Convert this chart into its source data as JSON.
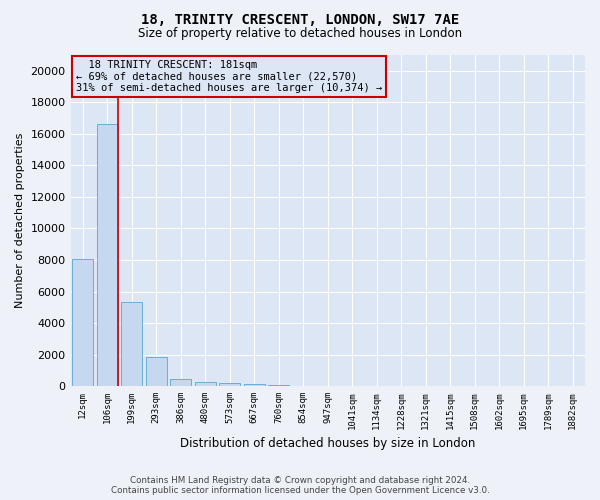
{
  "title": "18, TRINITY CRESCENT, LONDON, SW17 7AE",
  "subtitle": "Size of property relative to detached houses in London",
  "xlabel": "Distribution of detached houses by size in London",
  "ylabel": "Number of detached properties",
  "footer_line1": "Contains HM Land Registry data © Crown copyright and database right 2024.",
  "footer_line2": "Contains public sector information licensed under the Open Government Licence v3.0.",
  "categories": [
    "12sqm",
    "106sqm",
    "199sqm",
    "293sqm",
    "386sqm",
    "480sqm",
    "573sqm",
    "667sqm",
    "760sqm",
    "854sqm",
    "947sqm",
    "1041sqm",
    "1134sqm",
    "1228sqm",
    "1321sqm",
    "1415sqm",
    "1508sqm",
    "1602sqm",
    "1695sqm",
    "1789sqm",
    "1882sqm"
  ],
  "bar_heights": [
    8050,
    16600,
    5350,
    1870,
    480,
    280,
    175,
    130,
    100,
    0,
    0,
    0,
    0,
    0,
    0,
    0,
    0,
    0,
    0,
    0,
    0
  ],
  "bar_color": "#c5d8ef",
  "bar_edge_color": "#6aaed6",
  "ylim": [
    0,
    21000
  ],
  "yticks": [
    0,
    2000,
    4000,
    6000,
    8000,
    10000,
    12000,
    14000,
    16000,
    18000,
    20000
  ],
  "property_label": "18 TRINITY CRESCENT: 181sqm",
  "pct_smaller": 69,
  "n_smaller": "22,570",
  "pct_larger": 31,
  "n_larger": "10,374",
  "vline_x": 1.42,
  "annotation_box_color": "#cc0000",
  "background_color": "#eef2f8",
  "grid_color": "#d0d8e8",
  "plot_bg_color": "#dce6f5"
}
